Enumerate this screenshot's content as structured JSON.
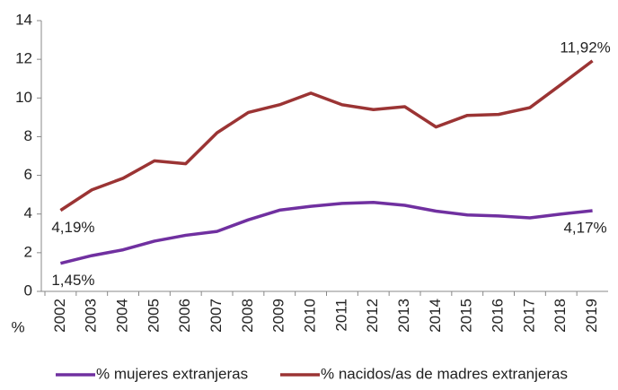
{
  "chart_data": {
    "type": "line",
    "y_label": "%",
    "categories": [
      "2002",
      "2003",
      "2004",
      "2005",
      "2006",
      "2007",
      "2008",
      "2009",
      "2010",
      "2011",
      "2012",
      "2013",
      "2014",
      "2015",
      "2016",
      "2017",
      "2018",
      "2019"
    ],
    "series": [
      {
        "name": "% mujeres extranjeras",
        "color": "#7030a0",
        "values": [
          1.45,
          1.85,
          2.15,
          2.6,
          2.9,
          3.1,
          3.7,
          4.2,
          4.4,
          4.55,
          4.6,
          4.45,
          4.15,
          3.95,
          3.9,
          3.8,
          4.0,
          4.17
        ],
        "value_labels": [
          "1,45%",
          null,
          null,
          null,
          null,
          null,
          null,
          null,
          null,
          null,
          null,
          null,
          null,
          null,
          null,
          null,
          null,
          "4,17%"
        ]
      },
      {
        "name": "% nacidos/as de madres extranjeras",
        "color": "#9b3434",
        "values": [
          4.19,
          5.25,
          5.85,
          6.75,
          6.6,
          8.2,
          9.25,
          9.65,
          10.25,
          9.65,
          9.4,
          9.55,
          8.5,
          9.1,
          9.15,
          9.5,
          10.7,
          11.92
        ],
        "value_labels": [
          "4,19%",
          null,
          null,
          null,
          null,
          null,
          null,
          null,
          null,
          null,
          null,
          null,
          null,
          null,
          null,
          null,
          null,
          "11,92%"
        ]
      }
    ],
    "ylim": [
      0,
      14
    ],
    "yticks": [
      0,
      2,
      4,
      6,
      8,
      10,
      12,
      14
    ],
    "grid": false
  }
}
